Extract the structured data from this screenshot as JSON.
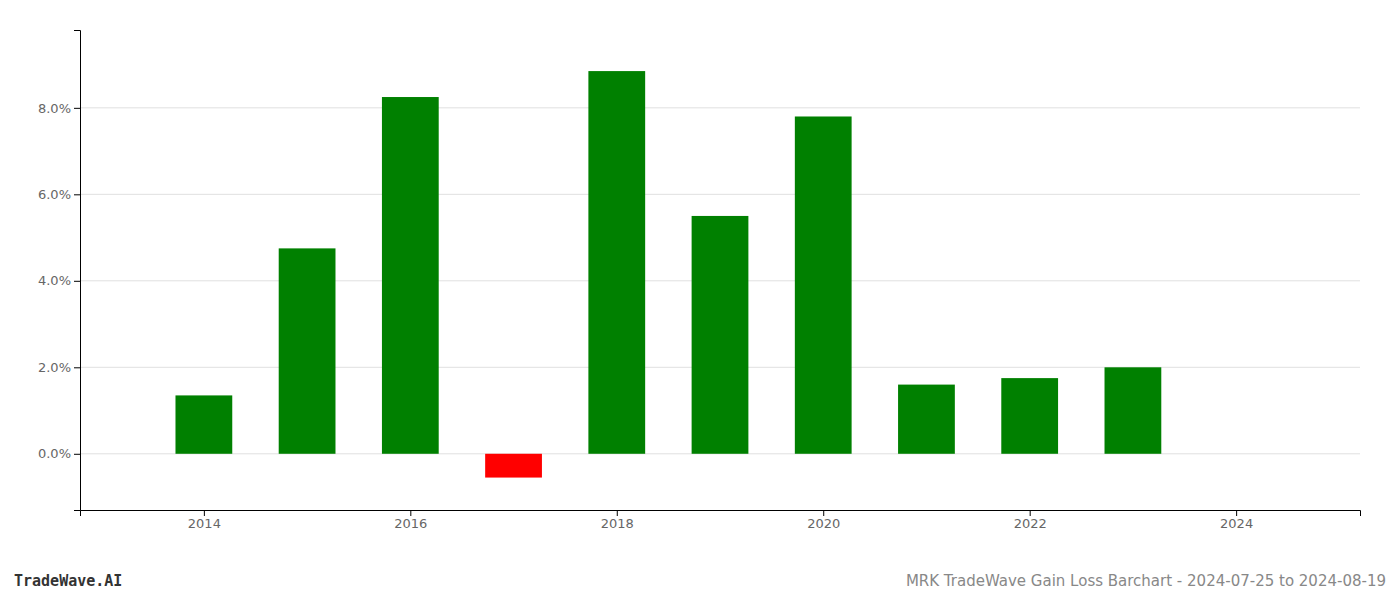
{
  "chart_data": {
    "type": "bar",
    "title": "MRK TradeWave Gain Loss Barchart - 2024-07-25 to 2024-08-19",
    "annotations": [
      "TradeWave.AI"
    ],
    "x": [
      2014,
      2015,
      2016,
      2017,
      2018,
      2019,
      2020,
      2021,
      2022,
      2023
    ],
    "values": [
      0.0135,
      0.0475,
      0.0825,
      -0.0055,
      0.0885,
      0.055,
      0.078,
      0.016,
      0.0175,
      0.02
    ],
    "colors": [
      "#008000",
      "#008000",
      "#008000",
      "#ff0000",
      "#008000",
      "#008000",
      "#008000",
      "#008000",
      "#008000",
      "#008000"
    ],
    "xlim": [
      2012.8,
      2025.2
    ],
    "xticks": [
      2014,
      2016,
      2018,
      2020,
      2022,
      2024
    ],
    "ylim": [
      -0.013,
      0.098
    ],
    "yticks": [
      {
        "value": 0.0,
        "label": "0.0%"
      },
      {
        "value": 0.02,
        "label": "2.0%"
      },
      {
        "value": 0.04,
        "label": "4.0%"
      },
      {
        "value": 0.06,
        "label": "6.0%"
      },
      {
        "value": 0.08,
        "label": "8.0%"
      }
    ],
    "grid": true
  }
}
